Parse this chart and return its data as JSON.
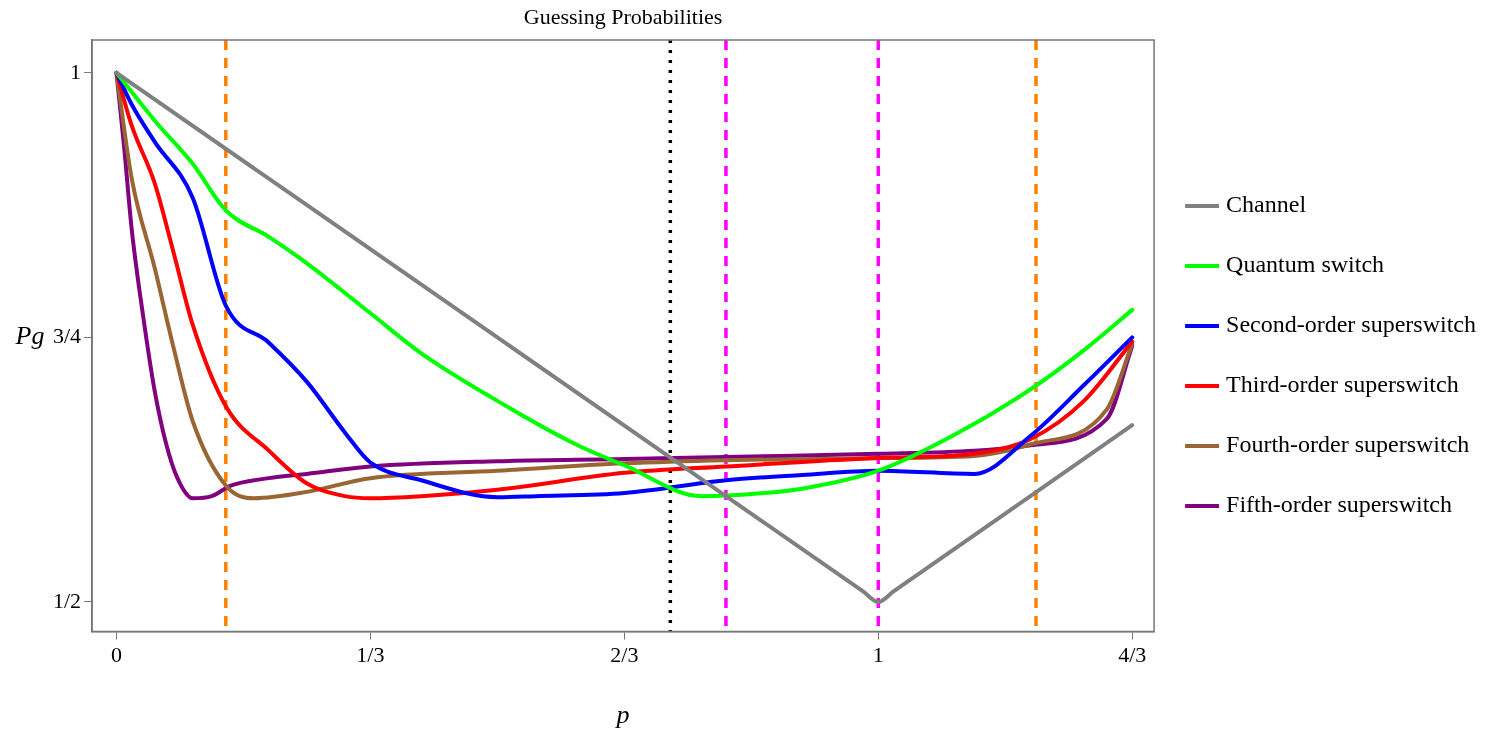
{
  "chart_data": {
    "type": "line",
    "title": "Guessing Probabilities",
    "xlabel": "p",
    "ylabel": "Pg",
    "xlim": [
      -0.032,
      1.362
    ],
    "ylim": [
      0.472,
      1.031
    ],
    "xticks": [
      0,
      {
        "value": 0.3333,
        "label": "1/3"
      },
      {
        "value": 0.6667,
        "label": "2/3"
      },
      1,
      {
        "value": 1.3333,
        "label": "4/3"
      }
    ],
    "yticks": [
      {
        "value": 0.5,
        "label": "1/2"
      },
      {
        "value": 0.75,
        "label": "3/4"
      },
      1
    ],
    "grid": false,
    "legend": "right",
    "marker": "none",
    "line_style": "solid",
    "series": [
      {
        "name": "Channel",
        "color": "#808080",
        "x": [
          0,
          0.5,
          0.98,
          1,
          1.02,
          1.3333
        ],
        "values": [
          1,
          0.75,
          0.51,
          0.5,
          0.51,
          0.667
        ]
      },
      {
        "name": "Quantum switch",
        "color": "#00ff00",
        "x": [
          0,
          0.05,
          0.1,
          0.1435,
          0.2,
          0.25,
          0.333,
          0.4,
          0.5,
          0.6,
          0.667,
          0.768,
          0.85,
          0.9,
          1,
          1.1,
          1.2,
          1.27,
          1.3333
        ],
        "values": [
          1,
          0.955,
          0.914,
          0.87,
          0.845,
          0.82,
          0.773,
          0.735,
          0.69,
          0.65,
          0.629,
          0.6,
          0.603,
          0.607,
          0.624,
          0.658,
          0.701,
          0.738,
          0.776
        ]
      },
      {
        "name": "Second-order superswitch",
        "color": "#0000ff",
        "x": [
          0,
          0.02,
          0.05,
          0.1,
          0.1435,
          0.2,
          0.25,
          0.3,
          0.333,
          0.4,
          0.5,
          0.55,
          0.667,
          0.8,
          0.9,
          1,
          1.126,
          1.2,
          1.27,
          1.3333
        ],
        "values": [
          1,
          0.97,
          0.935,
          0.882,
          0.78,
          0.745,
          0.708,
          0.66,
          0.632,
          0.615,
          0.599,
          0.6,
          0.603,
          0.615,
          0.62,
          0.624,
          0.621,
          0.657,
          0.705,
          0.75
        ]
      },
      {
        "name": "Third-order superswitch",
        "color": "#ff0000",
        "x": [
          0,
          0.02,
          0.05,
          0.075,
          0.1,
          0.1435,
          0.2,
          0.25,
          0.3,
          0.333,
          0.4,
          0.5,
          0.667,
          0.8,
          1,
          1.126,
          1.2,
          1.27,
          1.3333
        ],
        "values": [
          1,
          0.95,
          0.896,
          0.83,
          0.762,
          0.685,
          0.643,
          0.612,
          0.6,
          0.598,
          0.6,
          0.606,
          0.622,
          0.628,
          0.636,
          0.64,
          0.654,
          0.69,
          0.746
        ]
      },
      {
        "name": "Fourth-order superswitch",
        "color": "#996633",
        "x": [
          0,
          0.02,
          0.05,
          0.075,
          0.1,
          0.1435,
          0.18,
          0.25,
          0.333,
          0.5,
          0.667,
          0.8,
          1,
          1.126,
          1.2,
          1.3,
          1.3333
        ],
        "values": [
          1,
          0.9,
          0.816,
          0.74,
          0.671,
          0.61,
          0.598,
          0.604,
          0.617,
          0.624,
          0.631,
          0.634,
          0.636,
          0.638,
          0.649,
          0.682,
          0.744
        ]
      },
      {
        "name": "Fifth-order superswitch",
        "color": "#800080",
        "x": [
          0,
          0.01,
          0.02,
          0.035,
          0.05,
          0.065,
          0.08,
          0.1,
          0.125,
          0.15,
          0.2,
          0.25,
          0.333,
          0.5,
          0.667,
          0.8,
          1,
          1.126,
          1.2,
          1.3,
          1.3333
        ],
        "values": [
          1,
          0.93,
          0.852,
          0.77,
          0.7,
          0.65,
          0.617,
          0.598,
          0.6,
          0.61,
          0.617,
          0.621,
          0.628,
          0.633,
          0.635,
          0.637,
          0.64,
          0.643,
          0.648,
          0.673,
          0.742
        ]
      }
    ],
    "ref_lines": [
      {
        "axis": "x",
        "value": 0.1435,
        "color": "#ff8000",
        "line_style": "dashed"
      },
      {
        "axis": "x",
        "value": 0.727,
        "color": "#000000",
        "line_style": "dotted"
      },
      {
        "axis": "x",
        "value": 0.8,
        "color": "#ff00ff",
        "line_style": "dashed"
      },
      {
        "axis": "x",
        "value": 1,
        "color": "#ff00ff",
        "line_style": "dashed"
      },
      {
        "axis": "x",
        "value": 1.207,
        "color": "#ff8000",
        "line_style": "dashed"
      }
    ]
  }
}
